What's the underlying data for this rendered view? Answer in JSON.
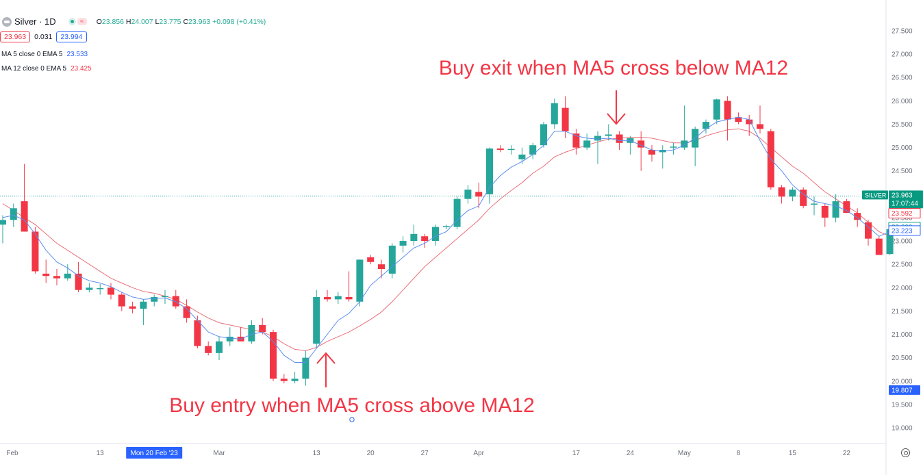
{
  "header": {
    "symbol": "Silver · 1D",
    "ohlc": {
      "o_label": "O",
      "o": "23.856",
      "h_label": "H",
      "h": "24.007",
      "l_label": "L",
      "l": "23.775",
      "c_label": "C",
      "c": "23.963",
      "change": "+0.098 (+0.41%)"
    },
    "bid": "23.963",
    "spread": "0.031",
    "ask": "23.994",
    "indicators": [
      {
        "label": "MA 5 close 0 EMA 5",
        "value": "23.533",
        "color": "#2962ff"
      },
      {
        "label": "MA 12 close 0 EMA 5",
        "value": "23.425",
        "color": "#f23645"
      }
    ]
  },
  "chart_data": {
    "type": "candlestick",
    "title": "Silver · 1D",
    "ylim": [
      18.7,
      27.75
    ],
    "y_ticks": [
      "19.000",
      "19.500",
      "20.000",
      "20.500",
      "21.000",
      "21.500",
      "22.000",
      "22.500",
      "23.000",
      "23.500",
      "24.000",
      "24.500",
      "25.000",
      "25.500",
      "26.000",
      "26.500",
      "27.000",
      "27.500"
    ],
    "x_labels": [
      {
        "index": 0,
        "label": "Feb"
      },
      {
        "index": 9,
        "label": "13"
      },
      {
        "index": 14,
        "label": "Mon 20 Feb '23",
        "highlight": true
      },
      {
        "index": 20,
        "label": "Mar"
      },
      {
        "index": 29,
        "label": "13"
      },
      {
        "index": 34,
        "label": "20"
      },
      {
        "index": 39,
        "label": "27"
      },
      {
        "index": 44,
        "label": "Apr"
      },
      {
        "index": 53,
        "label": "17"
      },
      {
        "index": 58,
        "label": "24"
      },
      {
        "index": 63,
        "label": "May"
      },
      {
        "index": 68,
        "label": "8"
      },
      {
        "index": 73,
        "label": "15"
      },
      {
        "index": 78,
        "label": "22"
      }
    ],
    "candles": [
      {
        "o": 23.35,
        "h": 23.55,
        "l": 22.95,
        "c": 23.45
      },
      {
        "o": 23.45,
        "h": 23.8,
        "l": 23.3,
        "c": 23.7
      },
      {
        "o": 23.85,
        "h": 24.65,
        "l": 23.2,
        "c": 23.2
      },
      {
        "o": 23.2,
        "h": 23.3,
        "l": 22.3,
        "c": 22.35
      },
      {
        "o": 22.3,
        "h": 22.6,
        "l": 22.1,
        "c": 22.25
      },
      {
        "o": 22.25,
        "h": 22.4,
        "l": 22.05,
        "c": 22.2
      },
      {
        "o": 22.2,
        "h": 22.5,
        "l": 22.15,
        "c": 22.3
      },
      {
        "o": 22.3,
        "h": 22.55,
        "l": 21.9,
        "c": 21.95
      },
      {
        "o": 21.95,
        "h": 22.1,
        "l": 21.9,
        "c": 22.0
      },
      {
        "o": 21.98,
        "h": 22.08,
        "l": 21.85,
        "c": 21.99
      },
      {
        "o": 22.0,
        "h": 22.1,
        "l": 21.75,
        "c": 21.85
      },
      {
        "o": 21.85,
        "h": 21.9,
        "l": 21.5,
        "c": 21.6
      },
      {
        "o": 21.6,
        "h": 21.7,
        "l": 21.45,
        "c": 21.55
      },
      {
        "o": 21.55,
        "h": 21.75,
        "l": 21.2,
        "c": 21.7
      },
      {
        "o": 21.7,
        "h": 21.85,
        "l": 21.6,
        "c": 21.8
      },
      {
        "o": 21.8,
        "h": 21.95,
        "l": 21.65,
        "c": 21.82
      },
      {
        "o": 21.82,
        "h": 21.95,
        "l": 21.55,
        "c": 21.6
      },
      {
        "o": 21.6,
        "h": 21.75,
        "l": 21.25,
        "c": 21.35
      },
      {
        "o": 21.3,
        "h": 21.4,
        "l": 20.7,
        "c": 20.75
      },
      {
        "o": 20.75,
        "h": 20.85,
        "l": 20.55,
        "c": 20.6
      },
      {
        "o": 20.6,
        "h": 20.95,
        "l": 20.45,
        "c": 20.85
      },
      {
        "o": 20.85,
        "h": 21.15,
        "l": 20.75,
        "c": 20.95
      },
      {
        "o": 20.95,
        "h": 21.15,
        "l": 20.85,
        "c": 20.85
      },
      {
        "o": 20.85,
        "h": 21.3,
        "l": 20.8,
        "c": 21.2
      },
      {
        "o": 21.2,
        "h": 21.35,
        "l": 21.0,
        "c": 21.05
      },
      {
        "o": 21.05,
        "h": 21.1,
        "l": 20.0,
        "c": 20.05
      },
      {
        "o": 20.05,
        "h": 20.15,
        "l": 19.95,
        "c": 20.0
      },
      {
        "o": 20.0,
        "h": 20.2,
        "l": 19.95,
        "c": 20.05
      },
      {
        "o": 20.05,
        "h": 20.65,
        "l": 19.9,
        "c": 20.5
      },
      {
        "o": 20.8,
        "h": 21.95,
        "l": 20.7,
        "c": 21.8
      },
      {
        "o": 21.8,
        "h": 21.95,
        "l": 21.7,
        "c": 21.75
      },
      {
        "o": 21.75,
        "h": 21.9,
        "l": 21.65,
        "c": 21.82
      },
      {
        "o": 21.8,
        "h": 22.35,
        "l": 21.7,
        "c": 21.75
      },
      {
        "o": 21.7,
        "h": 22.6,
        "l": 21.6,
        "c": 22.6
      },
      {
        "o": 22.65,
        "h": 22.7,
        "l": 22.5,
        "c": 22.55
      },
      {
        "o": 22.5,
        "h": 22.6,
        "l": 22.2,
        "c": 22.4
      },
      {
        "o": 22.3,
        "h": 22.95,
        "l": 22.2,
        "c": 22.9
      },
      {
        "o": 22.9,
        "h": 23.1,
        "l": 22.75,
        "c": 23.0
      },
      {
        "o": 23.0,
        "h": 23.35,
        "l": 22.9,
        "c": 23.15
      },
      {
        "o": 23.1,
        "h": 23.15,
        "l": 22.85,
        "c": 23.0
      },
      {
        "o": 23.0,
        "h": 23.35,
        "l": 22.9,
        "c": 23.3
      },
      {
        "o": 23.3,
        "h": 23.35,
        "l": 23.25,
        "c": 23.32
      },
      {
        "o": 23.3,
        "h": 23.95,
        "l": 23.25,
        "c": 23.9
      },
      {
        "o": 23.9,
        "h": 24.2,
        "l": 23.8,
        "c": 24.1
      },
      {
        "o": 24.05,
        "h": 24.25,
        "l": 23.7,
        "c": 23.95
      },
      {
        "o": 24.0,
        "h": 25.0,
        "l": 23.8,
        "c": 24.98
      },
      {
        "o": 24.98,
        "h": 25.05,
        "l": 24.9,
        "c": 24.95
      },
      {
        "o": 24.95,
        "h": 25.05,
        "l": 24.85,
        "c": 24.97
      },
      {
        "o": 24.75,
        "h": 25.0,
        "l": 24.65,
        "c": 24.85
      },
      {
        "o": 24.85,
        "h": 25.1,
        "l": 24.75,
        "c": 25.05
      },
      {
        "o": 25.05,
        "h": 25.55,
        "l": 25.0,
        "c": 25.5
      },
      {
        "o": 25.5,
        "h": 26.05,
        "l": 25.4,
        "c": 25.95
      },
      {
        "o": 25.85,
        "h": 26.1,
        "l": 25.2,
        "c": 25.35
      },
      {
        "o": 25.3,
        "h": 25.4,
        "l": 24.85,
        "c": 25.0
      },
      {
        "o": 25.0,
        "h": 25.3,
        "l": 24.95,
        "c": 25.15
      },
      {
        "o": 25.15,
        "h": 25.35,
        "l": 24.65,
        "c": 25.25
      },
      {
        "o": 25.25,
        "h": 25.5,
        "l": 25.15,
        "c": 25.28
      },
      {
        "o": 25.28,
        "h": 25.35,
        "l": 24.95,
        "c": 25.1
      },
      {
        "o": 25.1,
        "h": 25.25,
        "l": 24.85,
        "c": 25.2
      },
      {
        "o": 25.15,
        "h": 25.35,
        "l": 24.5,
        "c": 25.0
      },
      {
        "o": 24.95,
        "h": 25.05,
        "l": 24.7,
        "c": 24.85
      },
      {
        "o": 24.9,
        "h": 25.05,
        "l": 24.55,
        "c": 24.95
      },
      {
        "o": 25.0,
        "h": 25.1,
        "l": 24.85,
        "c": 25.02
      },
      {
        "o": 25.0,
        "h": 25.9,
        "l": 24.95,
        "c": 25.15
      },
      {
        "o": 25.0,
        "h": 25.45,
        "l": 24.6,
        "c": 25.4
      },
      {
        "o": 25.4,
        "h": 25.6,
        "l": 25.3,
        "c": 25.55
      },
      {
        "o": 25.6,
        "h": 26.05,
        "l": 25.5,
        "c": 26.03
      },
      {
        "o": 26.0,
        "h": 26.1,
        "l": 25.15,
        "c": 25.6
      },
      {
        "o": 25.65,
        "h": 25.75,
        "l": 25.5,
        "c": 25.55
      },
      {
        "o": 25.6,
        "h": 25.7,
        "l": 25.25,
        "c": 25.5
      },
      {
        "o": 25.5,
        "h": 25.9,
        "l": 25.3,
        "c": 25.4
      },
      {
        "o": 25.35,
        "h": 25.4,
        "l": 24.1,
        "c": 24.15
      },
      {
        "o": 24.15,
        "h": 24.2,
        "l": 23.8,
        "c": 23.95
      },
      {
        "o": 23.95,
        "h": 24.15,
        "l": 23.85,
        "c": 24.1
      },
      {
        "o": 24.1,
        "h": 24.15,
        "l": 23.7,
        "c": 23.75
      },
      {
        "o": 23.78,
        "h": 23.95,
        "l": 23.55,
        "c": 23.8
      },
      {
        "o": 23.75,
        "h": 23.8,
        "l": 23.3,
        "c": 23.5
      },
      {
        "o": 23.5,
        "h": 24.0,
        "l": 23.4,
        "c": 23.85
      },
      {
        "o": 23.85,
        "h": 23.9,
        "l": 23.6,
        "c": 23.6
      },
      {
        "o": 23.6,
        "h": 23.7,
        "l": 23.3,
        "c": 23.45
      },
      {
        "o": 23.4,
        "h": 23.45,
        "l": 22.9,
        "c": 23.05
      },
      {
        "o": 23.05,
        "h": 23.1,
        "l": 22.7,
        "c": 22.7
      },
      {
        "o": 22.72,
        "h": 23.3,
        "l": 22.7,
        "c": 23.25
      }
    ],
    "ma5": [
      23.5,
      23.55,
      23.45,
      23.15,
      22.8,
      22.55,
      22.42,
      22.25,
      22.15,
      22.1,
      22.02,
      21.9,
      21.8,
      21.75,
      21.77,
      21.78,
      21.7,
      21.55,
      21.3,
      21.05,
      20.95,
      20.92,
      20.9,
      21.0,
      21.05,
      20.85,
      20.55,
      20.4,
      20.4,
      20.7,
      21.0,
      21.3,
      21.45,
      21.7,
      22.05,
      22.25,
      22.45,
      22.65,
      22.85,
      22.95,
      23.1,
      23.2,
      23.45,
      23.65,
      23.75,
      24.15,
      24.4,
      24.58,
      24.7,
      24.85,
      25.05,
      25.35,
      25.35,
      25.25,
      25.2,
      25.18,
      25.2,
      25.15,
      25.15,
      25.05,
      24.95,
      24.92,
      24.95,
      25.05,
      25.2,
      25.4,
      25.55,
      25.6,
      25.65,
      25.6,
      25.15,
      24.75,
      24.5,
      24.2,
      24.0,
      23.85,
      23.8,
      23.75,
      23.65,
      23.5,
      23.3,
      23.1,
      23.2
    ],
    "ma12": [
      23.8,
      23.65,
      23.5,
      23.35,
      23.15,
      22.95,
      22.8,
      22.65,
      22.5,
      22.35,
      22.2,
      22.1,
      22.0,
      21.92,
      21.88,
      21.82,
      21.75,
      21.62,
      21.48,
      21.35,
      21.25,
      21.2,
      21.15,
      21.1,
      21.05,
      20.95,
      20.8,
      20.68,
      20.65,
      20.72,
      20.85,
      20.95,
      21.05,
      21.18,
      21.32,
      21.48,
      21.7,
      21.95,
      22.2,
      22.45,
      22.65,
      22.85,
      23.05,
      23.25,
      23.45,
      23.7,
      23.9,
      24.08,
      24.25,
      24.45,
      24.6,
      24.8,
      24.9,
      24.98,
      25.05,
      25.12,
      25.18,
      25.2,
      25.22,
      25.22,
      25.2,
      25.15,
      25.1,
      25.1,
      25.15,
      25.25,
      25.32,
      25.38,
      25.4,
      25.35,
      25.2,
      25.0,
      24.8,
      24.6,
      24.45,
      24.25,
      24.05,
      23.9,
      23.75,
      23.6,
      23.4,
      23.2,
      23.1
    ],
    "price_labels": [
      {
        "name": "SILVER",
        "value": 23.963,
        "text": "23.963",
        "time": "17:07:44",
        "color": "#089981"
      },
      {
        "name": "red-ma",
        "value": 23.592,
        "text": "23.592",
        "color": "#f23645"
      },
      {
        "name": "blue-ma-1",
        "value": 23.299,
        "text": "23.299",
        "color": "#089981"
      },
      {
        "name": "blue-ma-2",
        "value": 23.223,
        "text": "23.223",
        "color": "#2962ff"
      },
      {
        "name": "low",
        "value": 19.807,
        "text": "19.807",
        "color": "#2962ff",
        "filled": true
      }
    ],
    "annotations": [
      {
        "text": "Buy exit when MA5 cross below MA12",
        "color": "#f23645"
      },
      {
        "text": "Buy entry when MA5 cross above MA12",
        "color": "#f23645"
      }
    ],
    "colors": {
      "up": "#26a69a",
      "down": "#f23645",
      "ma5": "#5b8def",
      "ma12": "#e8707a",
      "price_line": "#26a69a"
    }
  }
}
